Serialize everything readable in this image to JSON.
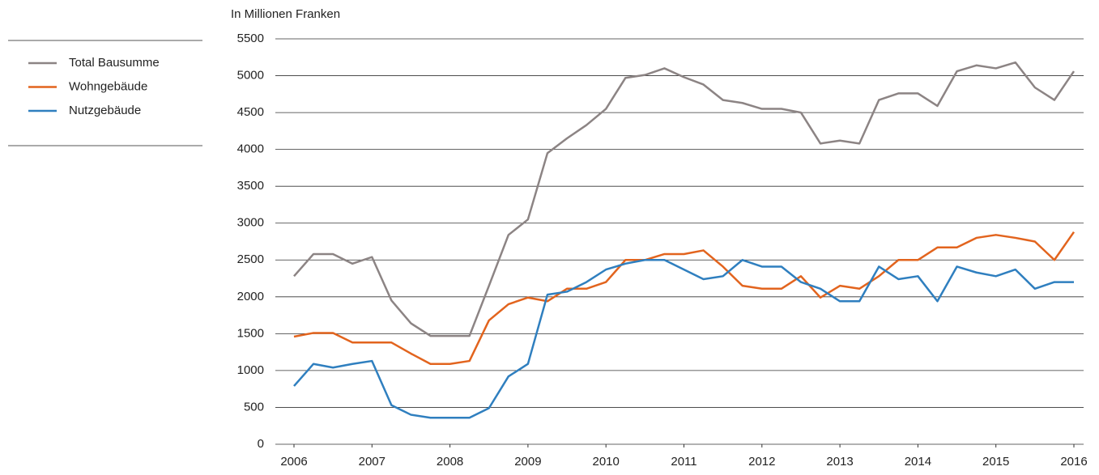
{
  "chart_data": {
    "type": "line",
    "title": "In Millionen Franken",
    "x": [
      2006,
      2006.25,
      2006.5,
      2006.75,
      2007,
      2007.25,
      2007.5,
      2007.75,
      2008,
      2008.25,
      2008.5,
      2008.75,
      2009,
      2009.25,
      2009.5,
      2009.75,
      2010,
      2010.25,
      2010.5,
      2010.75,
      2011,
      2011.25,
      2011.5,
      2011.75,
      2012,
      2012.25,
      2012.5,
      2012.75,
      2013,
      2013.25,
      2013.5,
      2013.75,
      2014,
      2014.25,
      2014.5,
      2014.75,
      2015,
      2015.25,
      2015.5,
      2015.75,
      2016
    ],
    "series": [
      {
        "name": "Total Bausumme",
        "color": "#8c8484",
        "values": [
          2280,
          2580,
          2580,
          2450,
          2540,
          1950,
          1640,
          1470,
          1470,
          1470,
          2150,
          2840,
          3050,
          3950,
          4150,
          4330,
          4550,
          4970,
          5010,
          5100,
          4980,
          4880,
          4670,
          4630,
          4550,
          4550,
          4500,
          4080,
          4120,
          4080,
          4670,
          4760,
          4760,
          4590,
          5060,
          5140,
          5100,
          5180,
          4840,
          4670,
          5060
        ]
      },
      {
        "name": "Wohngebäude",
        "color": "#e2641e",
        "values": [
          1460,
          1510,
          1510,
          1380,
          1380,
          1380,
          1230,
          1090,
          1090,
          1130,
          1680,
          1900,
          1990,
          1940,
          2110,
          2110,
          2200,
          2500,
          2500,
          2580,
          2580,
          2630,
          2410,
          2150,
          2110,
          2110,
          2280,
          1990,
          2150,
          2110,
          2280,
          2500,
          2500,
          2670,
          2670,
          2800,
          2840,
          2800,
          2750,
          2500,
          2880
        ]
      },
      {
        "name": "Nutzgebäude",
        "color": "#2f7fbf",
        "values": [
          790,
          1090,
          1040,
          1090,
          1130,
          530,
          400,
          360,
          360,
          360,
          490,
          920,
          1090,
          2030,
          2070,
          2200,
          2370,
          2450,
          2500,
          2500,
          2370,
          2240,
          2280,
          2500,
          2410,
          2410,
          2200,
          2110,
          1940,
          1940,
          2410,
          2240,
          2280,
          1940,
          2410,
          2330,
          2280,
          2370,
          2110,
          2200,
          2200
        ]
      }
    ],
    "xlim": [
      2006,
      2016
    ],
    "xticks": [
      2006,
      2007,
      2008,
      2009,
      2010,
      2011,
      2012,
      2013,
      2014,
      2015,
      2016
    ],
    "ylim": [
      0,
      5500
    ],
    "yticks": [
      0,
      500,
      1000,
      1500,
      2000,
      2500,
      3000,
      3500,
      4000,
      4500,
      5000,
      5500
    ],
    "grid": true,
    "legend": "left"
  }
}
